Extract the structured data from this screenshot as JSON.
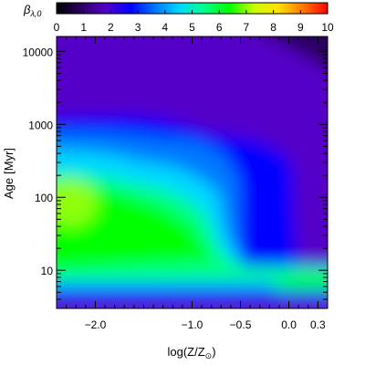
{
  "chart_data": {
    "type": "heatmap",
    "title": "",
    "colorbar": {
      "label": "β",
      "label_sub": "λ,0",
      "range": [
        0,
        10
      ],
      "ticks": [
        "0",
        "1",
        "2",
        "3",
        "4",
        "5",
        "6",
        "7",
        "8",
        "9",
        "10"
      ],
      "placement": "top"
    },
    "xlabel": {
      "prefix": "log(Z/Z",
      "sub": "⊙",
      "suffix": ")"
    },
    "ylabel": {
      "text": "Age",
      "unit": "[Myr]"
    },
    "x_axis": {
      "range": [
        -2.4,
        0.4
      ],
      "ticks": [
        {
          "value": -2.0,
          "label": "−2.0"
        },
        {
          "value": -1.0,
          "label": "−1.0"
        },
        {
          "value": -0.5,
          "label": "−0.5"
        },
        {
          "value": 0.0,
          "label": "0.0"
        },
        {
          "value": 0.3,
          "label": "0.3"
        }
      ]
    },
    "y_axis": {
      "scale": "log",
      "range_myr": [
        3,
        16000
      ],
      "ticks": [
        {
          "value": 10,
          "label": "10"
        },
        {
          "value": 100,
          "label": "100"
        },
        {
          "value": 1000,
          "label": "1000"
        },
        {
          "value": 10000,
          "label": "10000"
        }
      ]
    },
    "colormap": [
      "#000000",
      "#2a0060",
      "#5500c8",
      "#0000ff",
      "#0078ff",
      "#00d8ff",
      "#00ff88",
      "#00ff00",
      "#c8ff00",
      "#ffe000",
      "#ff7800",
      "#ff0000"
    ]
  }
}
